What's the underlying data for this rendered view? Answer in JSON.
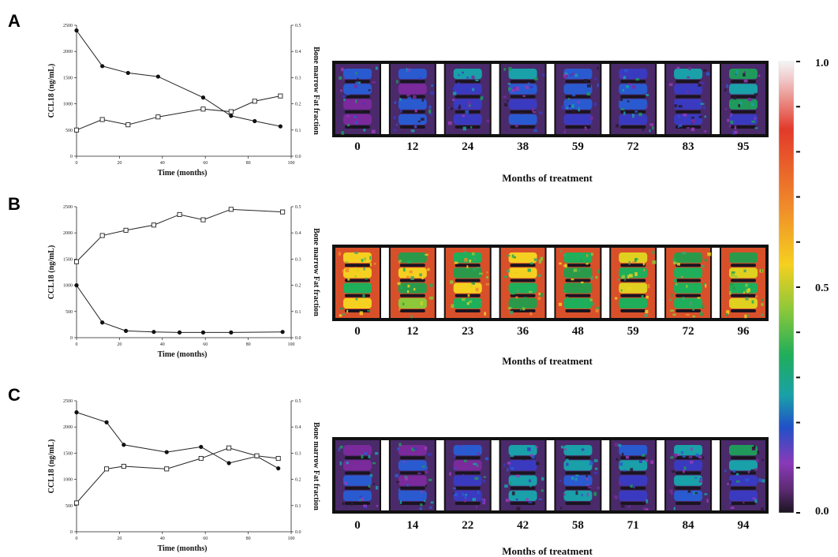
{
  "chart_data": [
    {
      "type": "line",
      "panel": "A",
      "xlabel": "Time (months)",
      "ylabel": "CCL18 (ng/mL)",
      "y2label": "Bone marrow Fat fraction",
      "xlim": [
        0,
        100
      ],
      "ylim": [
        0,
        2500
      ],
      "y2lim": [
        0,
        0.5
      ],
      "xticks": [
        "0",
        "20",
        "40",
        "60",
        "80",
        "100"
      ],
      "yticks": [
        "0",
        "500",
        "1000",
        "1500",
        "2000",
        "2500"
      ],
      "y2ticks": [
        "0.0",
        "0.1",
        "0.2",
        "0.3",
        "0.4",
        "0.5"
      ],
      "series": [
        {
          "marker": "filled-circle",
          "axis": "left",
          "x": [
            0,
            12,
            24,
            38,
            59,
            72,
            83,
            95
          ],
          "values": [
            2400,
            1720,
            1590,
            1520,
            1120,
            770,
            670,
            570
          ]
        },
        {
          "marker": "open-square",
          "axis": "right",
          "x": [
            0,
            12,
            24,
            38,
            59,
            72,
            83,
            95
          ],
          "values": [
            0.1,
            0.14,
            0.12,
            0.15,
            0.18,
            0.17,
            0.21,
            0.23
          ]
        }
      ]
    },
    {
      "type": "line",
      "panel": "B",
      "xlabel": "Time (months)",
      "ylabel": "CCL18 (ng/mL)",
      "y2label": "Bone marrow Fat fraction",
      "xlim": [
        0,
        100
      ],
      "ylim": [
        0,
        2500
      ],
      "y2lim": [
        0,
        0.5
      ],
      "xticks": [
        "0",
        "20",
        "40",
        "60",
        "80",
        "100"
      ],
      "yticks": [
        "0",
        "500",
        "1000",
        "1500",
        "2000",
        "2500"
      ],
      "y2ticks": [
        "0.0",
        "0.1",
        "0.2",
        "0.3",
        "0.4",
        "0.5"
      ],
      "series": [
        {
          "marker": "filled-circle",
          "axis": "left",
          "x": [
            0,
            12,
            23,
            36,
            48,
            59,
            72,
            96
          ],
          "values": [
            1000,
            290,
            130,
            110,
            100,
            100,
            100,
            110
          ]
        },
        {
          "marker": "open-square",
          "axis": "right",
          "x": [
            0,
            12,
            23,
            36,
            48,
            59,
            72,
            96
          ],
          "values": [
            0.29,
            0.39,
            0.41,
            0.43,
            0.47,
            0.45,
            0.49,
            0.48
          ]
        }
      ]
    },
    {
      "type": "line",
      "panel": "C",
      "xlabel": "Time (months)",
      "ylabel": "CCL18 (ng/mL)",
      "y2label": "Bone marrow Fat fraction",
      "xlim": [
        0,
        100
      ],
      "ylim": [
        0,
        2500
      ],
      "y2lim": [
        0,
        0.5
      ],
      "xticks": [
        "0",
        "20",
        "40",
        "60",
        "80",
        "100"
      ],
      "yticks": [
        "0",
        "500",
        "1000",
        "1500",
        "2000",
        "2500"
      ],
      "y2ticks": [
        "0.0",
        "0.1",
        "0.2",
        "0.3",
        "0.4",
        "0.5"
      ],
      "series": [
        {
          "marker": "filled-circle",
          "axis": "left",
          "x": [
            0,
            14,
            22,
            42,
            58,
            71,
            84,
            94
          ],
          "values": [
            2280,
            2090,
            1660,
            1520,
            1620,
            1310,
            1440,
            1210
          ]
        },
        {
          "marker": "open-square",
          "axis": "right",
          "x": [
            0,
            14,
            22,
            42,
            58,
            71,
            84,
            94
          ],
          "values": [
            0.11,
            0.24,
            0.25,
            0.24,
            0.28,
            0.32,
            0.29,
            0.28
          ]
        }
      ]
    }
  ],
  "scan_rows": [
    {
      "labels": [
        "0",
        "12",
        "24",
        "38",
        "59",
        "72",
        "83",
        "95"
      ],
      "caption": "Months of treatment",
      "palette": "low"
    },
    {
      "labels": [
        "0",
        "12",
        "23",
        "36",
        "48",
        "59",
        "72",
        "96"
      ],
      "caption": "Months of treatment",
      "palette": "high"
    },
    {
      "labels": [
        "0",
        "14",
        "22",
        "42",
        "58",
        "71",
        "84",
        "94"
      ],
      "caption": "Months of treatment",
      "palette": "low"
    }
  ],
  "colorbar": {
    "labels": [
      "1.0",
      "0.5",
      "0.0"
    ]
  },
  "panel_letters": [
    "A",
    "B",
    "C"
  ]
}
